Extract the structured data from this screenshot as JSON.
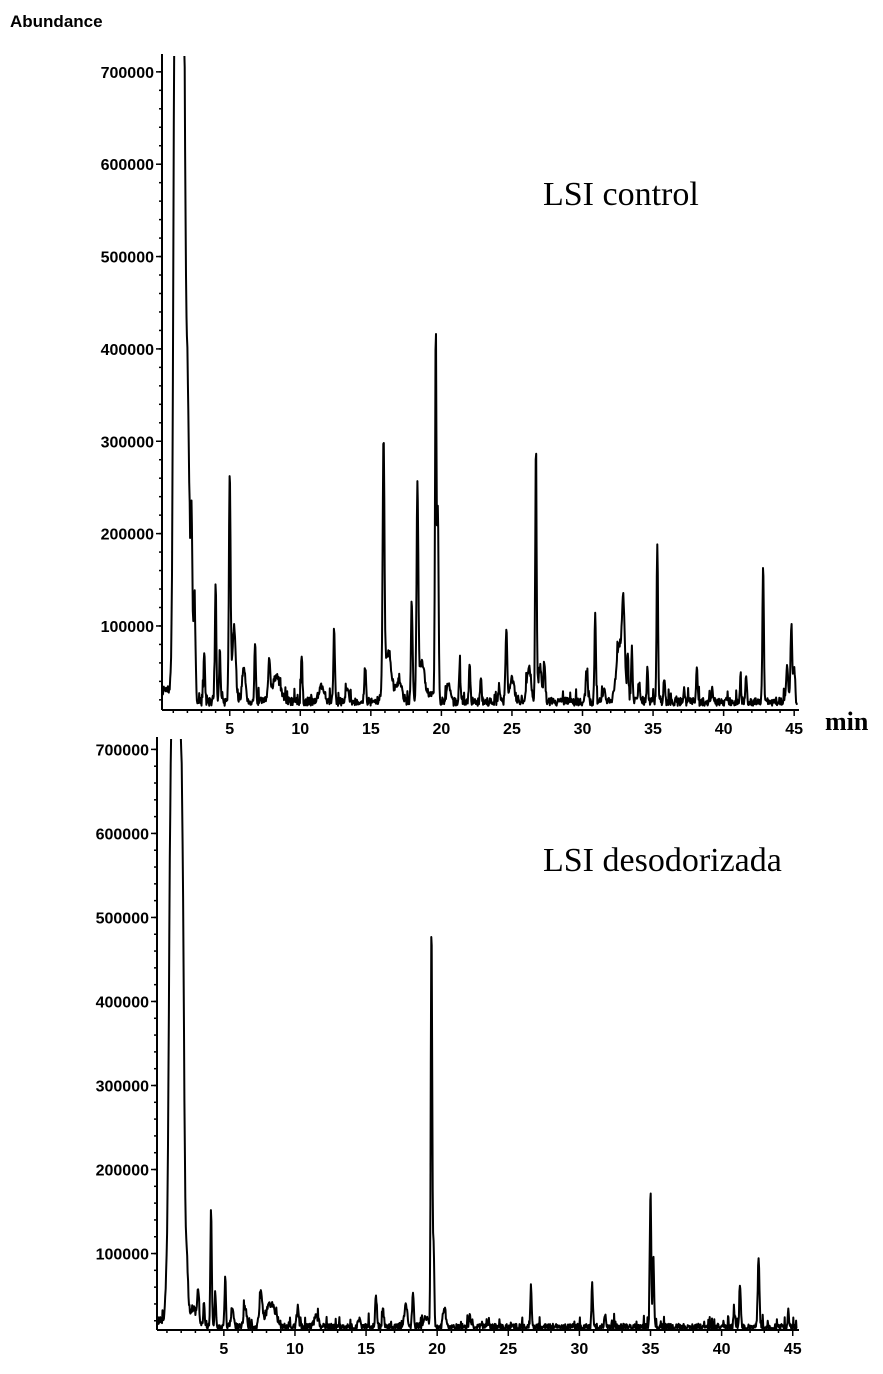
{
  "chart_data": [
    {
      "type": "line",
      "ylabel": "Abundance",
      "xlabel": "min",
      "annotation": "LSI control",
      "xlim": [
        0.2,
        45.2
      ],
      "ylim": [
        9000,
        715000
      ],
      "x_ticks": [
        5,
        10,
        15,
        20,
        25,
        30,
        35,
        40,
        45
      ],
      "y_ticks": [
        100000,
        200000,
        300000,
        400000,
        500000,
        600000,
        700000
      ],
      "baseline": 18000,
      "start_value": 30000,
      "peaks": [
        [
          1.1,
          600000,
          0.1
        ],
        [
          1.4,
          800000,
          0.2
        ],
        [
          1.7,
          680000,
          0.12
        ],
        [
          2.0,
          350000,
          0.15
        ],
        [
          2.3,
          185000,
          0.06
        ],
        [
          2.5,
          130000,
          0.07
        ],
        [
          3.2,
          75000,
          0.05
        ],
        [
          4.0,
          145000,
          0.05
        ],
        [
          4.3,
          75000,
          0.05
        ],
        [
          5.0,
          260000,
          0.06
        ],
        [
          5.3,
          100000,
          0.12
        ],
        [
          6.0,
          55000,
          0.12
        ],
        [
          6.8,
          85000,
          0.05
        ],
        [
          7.8,
          58000,
          0.07
        ],
        [
          8.3,
          45000,
          0.3
        ],
        [
          10.1,
          70000,
          0.05
        ],
        [
          11.5,
          35000,
          0.2
        ],
        [
          12.4,
          98000,
          0.05
        ],
        [
          13.3,
          35000,
          0.1
        ],
        [
          14.6,
          55000,
          0.06
        ],
        [
          15.9,
          282000,
          0.06
        ],
        [
          16.2,
          70000,
          0.25
        ],
        [
          17.0,
          40000,
          0.2
        ],
        [
          17.9,
          122000,
          0.06
        ],
        [
          18.3,
          245000,
          0.06
        ],
        [
          18.6,
          60000,
          0.2
        ],
        [
          19.3,
          28000,
          0.3
        ],
        [
          19.6,
          420000,
          0.05
        ],
        [
          19.75,
          222000,
          0.05
        ],
        [
          20.5,
          40000,
          0.1
        ],
        [
          21.3,
          55000,
          0.05
        ],
        [
          22.0,
          60000,
          0.05
        ],
        [
          22.8,
          45000,
          0.05
        ],
        [
          24.1,
          35000,
          0.06
        ],
        [
          24.6,
          98000,
          0.06
        ],
        [
          25.0,
          45000,
          0.15
        ],
        [
          26.2,
          55000,
          0.15
        ],
        [
          26.7,
          292000,
          0.05
        ],
        [
          27.0,
          55000,
          0.12
        ],
        [
          27.3,
          58000,
          0.06
        ],
        [
          30.3,
          45000,
          0.08
        ],
        [
          30.9,
          115000,
          0.05
        ],
        [
          31.5,
          30000,
          0.1
        ],
        [
          32.6,
          80000,
          0.2
        ],
        [
          32.9,
          110000,
          0.1
        ],
        [
          33.2,
          70000,
          0.05
        ],
        [
          33.5,
          75000,
          0.05
        ],
        [
          34.0,
          40000,
          0.06
        ],
        [
          34.6,
          55000,
          0.05
        ],
        [
          35.3,
          188000,
          0.05
        ],
        [
          35.8,
          45000,
          0.05
        ],
        [
          37.2,
          30000,
          0.05
        ],
        [
          38.1,
          55000,
          0.05
        ],
        [
          39.2,
          30000,
          0.05
        ],
        [
          41.2,
          40000,
          0.05
        ],
        [
          41.6,
          45000,
          0.05
        ],
        [
          42.8,
          165000,
          0.05
        ],
        [
          44.5,
          55000,
          0.08
        ],
        [
          44.8,
          103000,
          0.06
        ],
        [
          45.0,
          60000,
          0.06
        ]
      ]
    },
    {
      "type": "line",
      "xlabel": "",
      "annotation": "LSI desodorizada",
      "xlim": [
        0.3,
        45.3
      ],
      "ylim": [
        9000,
        710000
      ],
      "x_ticks": [
        5,
        10,
        15,
        20,
        25,
        30,
        35,
        40,
        45
      ],
      "y_ticks": [
        100000,
        200000,
        300000,
        400000,
        500000,
        600000,
        700000
      ],
      "baseline": 12000,
      "start_value": 20000,
      "peaks": [
        [
          1.2,
          88000,
          0.08
        ],
        [
          1.4,
          780000,
          0.2
        ],
        [
          1.8,
          760000,
          0.18
        ],
        [
          2.1,
          400000,
          0.12
        ],
        [
          2.4,
          75000,
          0.08
        ],
        [
          2.8,
          35000,
          0.3
        ],
        [
          3.2,
          50000,
          0.06
        ],
        [
          3.6,
          40000,
          0.05
        ],
        [
          4.1,
          152000,
          0.05
        ],
        [
          4.4,
          55000,
          0.05
        ],
        [
          5.1,
          70000,
          0.05
        ],
        [
          5.6,
          35000,
          0.1
        ],
        [
          6.5,
          35000,
          0.1
        ],
        [
          7.6,
          50000,
          0.1
        ],
        [
          8.3,
          40000,
          0.35
        ],
        [
          10.2,
          35000,
          0.08
        ],
        [
          11.5,
          25000,
          0.15
        ],
        [
          14.5,
          20000,
          0.1
        ],
        [
          15.7,
          50000,
          0.06
        ],
        [
          16.2,
          32000,
          0.06
        ],
        [
          17.8,
          40000,
          0.1
        ],
        [
          18.3,
          50000,
          0.06
        ],
        [
          19.2,
          25000,
          0.2
        ],
        [
          19.6,
          495000,
          0.05
        ],
        [
          19.75,
          110000,
          0.05
        ],
        [
          20.5,
          35000,
          0.1
        ],
        [
          22.3,
          25000,
          0.06
        ],
        [
          26.6,
          58000,
          0.05
        ],
        [
          30.9,
          62000,
          0.05
        ],
        [
          31.8,
          30000,
          0.06
        ],
        [
          35.0,
          178000,
          0.05
        ],
        [
          35.2,
          100000,
          0.05
        ],
        [
          40.9,
          30000,
          0.06
        ],
        [
          41.3,
          62000,
          0.05
        ],
        [
          42.6,
          92000,
          0.06
        ],
        [
          44.7,
          28000,
          0.06
        ]
      ]
    }
  ]
}
